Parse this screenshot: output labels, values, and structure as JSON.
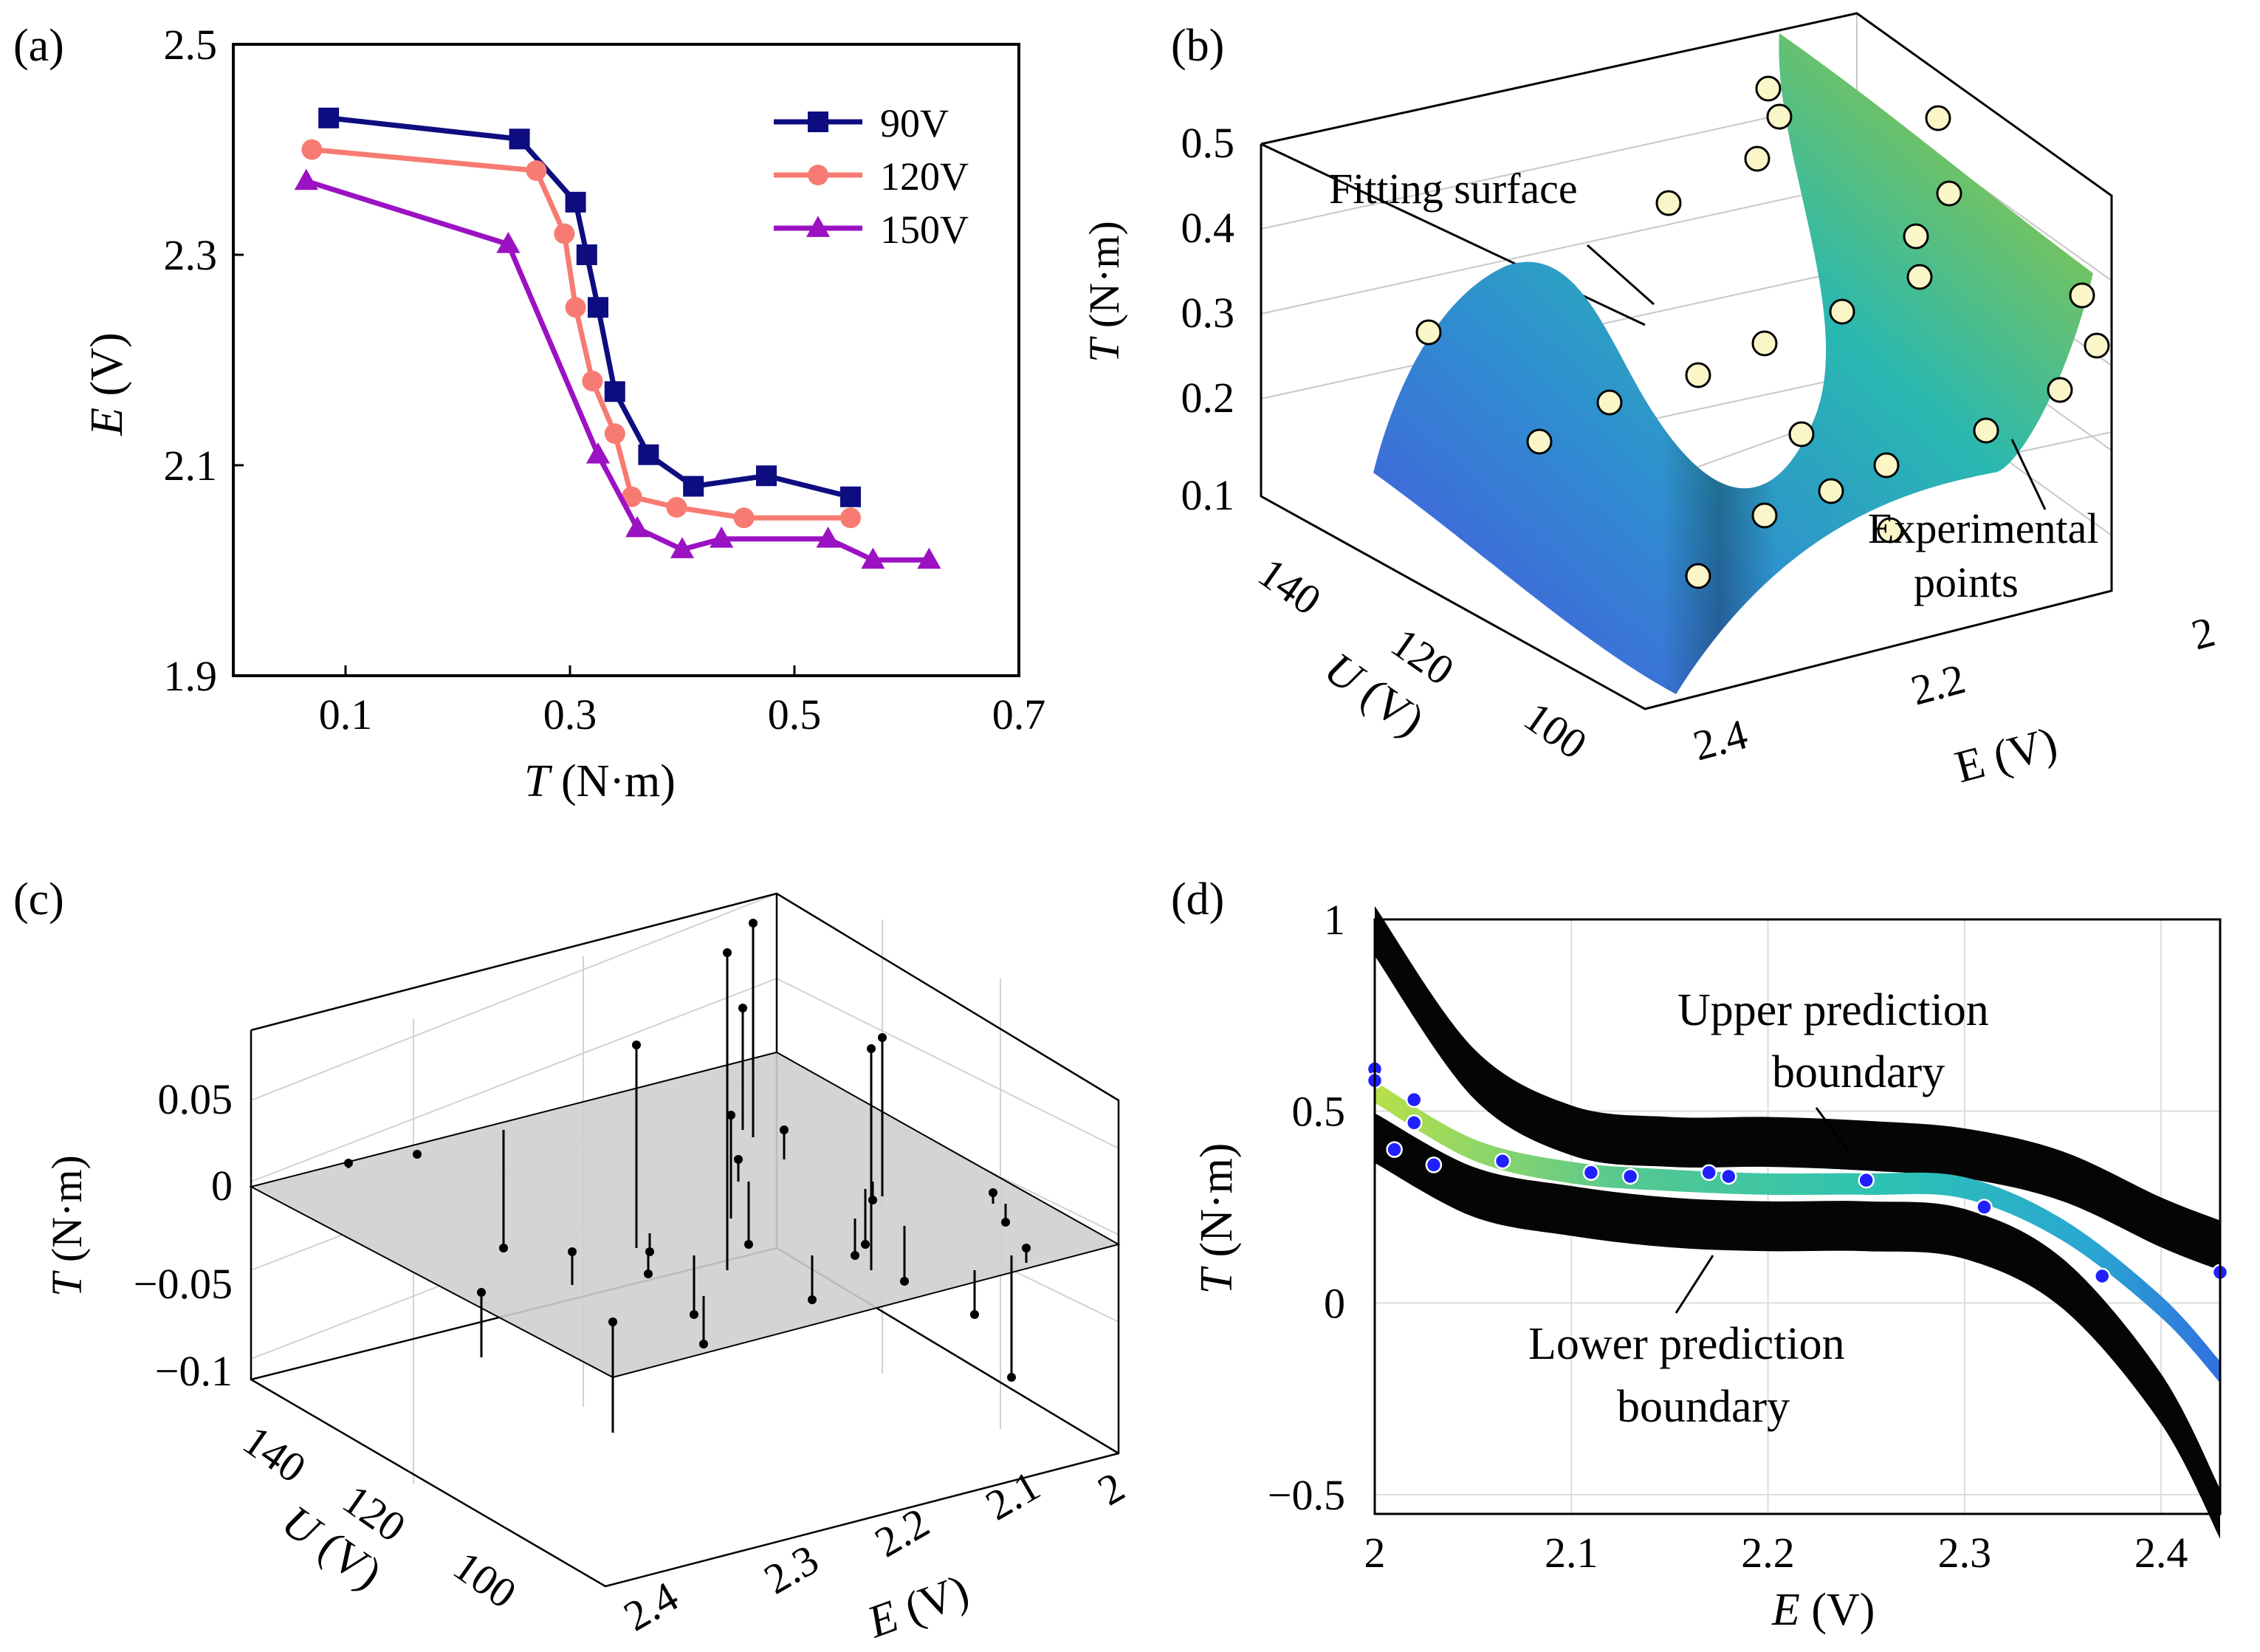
{
  "colors": {
    "s90": "#0d0d80",
    "s120": "#f77b72",
    "s150": "#9b12c3",
    "point_fill": "#fbf6c8",
    "residual_plane": "#cfcfcf",
    "band": "#050505",
    "blue_point": "#2020ff"
  },
  "panels": {
    "a": {
      "tag": "(a)"
    },
    "b": {
      "tag": "(b)",
      "annotations": [
        "Fitting surface",
        "Experimental",
        "points"
      ],
      "axis_titles": {
        "t_sym": "T",
        "t_unit": " (N·m)",
        "u_sym": "U",
        "u_unit": " (V)",
        "e_sym": "E",
        "e_unit": " (V)"
      },
      "t_ticks": [
        "0.5",
        "0.4",
        "0.3",
        "0.2",
        "0.1"
      ],
      "u_ticks": [
        "140",
        "120",
        "100"
      ],
      "e_ticks": [
        "2.4",
        "2.2",
        "2"
      ]
    },
    "c": {
      "tag": "(c)",
      "axis_titles": {
        "t_sym": "T",
        "t_unit": " (N·m)",
        "u_sym": "U",
        "u_unit": " (V)",
        "e_sym": "E",
        "e_unit": " (V)"
      },
      "t_ticks": [
        "0.05",
        "0",
        "−0.05",
        "−0.1"
      ],
      "u_ticks": [
        "140",
        "120",
        "100"
      ],
      "e_ticks": [
        "2.4",
        "2.3",
        "2.2",
        "2.1",
        "2"
      ]
    },
    "d": {
      "tag": "(d)",
      "annotations": [
        "Upper prediction",
        "boundary",
        "Lower prediction",
        "boundary"
      ]
    }
  },
  "chart_data": [
    {
      "panel": "a",
      "type": "line",
      "title": "",
      "xlabel_symbol": "T",
      "xlabel_unit": " (N·m)",
      "ylabel_symbol": "E",
      "ylabel_unit": " (V)",
      "xlim": [
        0,
        0.7
      ],
      "ylim": [
        1.9,
        2.5
      ],
      "xticks": [
        0.1,
        0.3,
        0.5,
        0.7
      ],
      "xtick_labels": [
        "0.1",
        "0.3",
        "0.5",
        "0.7"
      ],
      "yticks": [
        1.9,
        2.1,
        2.3,
        2.5
      ],
      "ytick_labels": [
        "1.9",
        "2.1",
        "2.3",
        "2.5"
      ],
      "legend_position": "top-right",
      "series": [
        {
          "name": "90V",
          "marker": "square",
          "color_key": "s90",
          "x": [
            0.085,
            0.255,
            0.305,
            0.315,
            0.325,
            0.34,
            0.37,
            0.41,
            0.475,
            0.55
          ],
          "y": [
            2.43,
            2.41,
            2.35,
            2.3,
            2.25,
            2.17,
            2.11,
            2.08,
            2.09,
            2.07
          ]
        },
        {
          "name": "120V",
          "marker": "circle",
          "color_key": "s120",
          "x": [
            0.07,
            0.27,
            0.295,
            0.305,
            0.32,
            0.34,
            0.355,
            0.395,
            0.455,
            0.55
          ],
          "y": [
            2.4,
            2.38,
            2.32,
            2.25,
            2.18,
            2.13,
            2.07,
            2.06,
            2.05,
            2.05
          ]
        },
        {
          "name": "150V",
          "marker": "triangle",
          "color_key": "s150",
          "x": [
            0.065,
            0.245,
            0.325,
            0.36,
            0.4,
            0.435,
            0.53,
            0.57,
            0.62
          ],
          "y": [
            2.37,
            2.31,
            2.11,
            2.04,
            2.02,
            2.03,
            2.03,
            2.01,
            2.01
          ]
        }
      ]
    },
    {
      "panel": "b",
      "type": "scatter",
      "title": "",
      "description_type": "3d fitted surface with experimental points",
      "xlabel": "E (V)",
      "ylabel": "U (V)",
      "zlabel": "T (N·m)",
      "xlim": [
        2.0,
        2.45
      ],
      "ylim": [
        90,
        150
      ],
      "zlim": [
        0.1,
        0.5
      ],
      "experimental_points_count": 24
    },
    {
      "panel": "c",
      "type": "scatter",
      "title": "",
      "description_type": "3d residual stem plot over zero plane",
      "xlabel": "E (V)",
      "ylabel": "U (V)",
      "zlabel": "T (N·m)",
      "xlim": [
        2.0,
        2.45
      ],
      "ylim": [
        90,
        150
      ],
      "zlim": [
        -0.1,
        0.08
      ],
      "residual_stems_count": 30
    },
    {
      "panel": "d",
      "type": "area",
      "title": "",
      "xlabel_symbol": "E",
      "xlabel_unit": " (V)",
      "ylabel_symbol": "T",
      "ylabel_unit": " (N·m)",
      "xlim": [
        2.0,
        2.43
      ],
      "ylim": [
        -0.55,
        1.0
      ],
      "xticks": [
        2.0,
        2.1,
        2.2,
        2.3,
        2.4
      ],
      "xtick_labels": [
        "2",
        "2.1",
        "2.2",
        "2.3",
        "2.4"
      ],
      "yticks": [
        1.0,
        0.5,
        0.0,
        -0.5
      ],
      "ytick_labels": [
        "1",
        "0.5",
        "0",
        "−0.5"
      ],
      "fit_curve": {
        "x": [
          2.0,
          2.05,
          2.1,
          2.15,
          2.2,
          2.25,
          2.3,
          2.35,
          2.4,
          2.43
        ],
        "y": [
          0.55,
          0.4,
          0.34,
          0.32,
          0.31,
          0.31,
          0.3,
          0.19,
          -0.01,
          -0.18
        ]
      },
      "upper_boundary": {
        "x": [
          2.0,
          2.05,
          2.1,
          2.15,
          2.2,
          2.25,
          2.3,
          2.35,
          2.4,
          2.43
        ],
        "y": [
          0.97,
          0.6,
          0.45,
          0.42,
          0.42,
          0.41,
          0.39,
          0.33,
          0.21,
          0.15
        ]
      },
      "lower_boundary": {
        "x": [
          2.0,
          2.05,
          2.1,
          2.15,
          2.2,
          2.25,
          2.3,
          2.35,
          2.4,
          2.43
        ],
        "y": [
          0.43,
          0.29,
          0.24,
          0.21,
          0.2,
          0.2,
          0.18,
          0.05,
          -0.25,
          -0.55
        ]
      },
      "points": {
        "x": [
          2.0,
          2.0,
          2.01,
          2.02,
          2.02,
          2.03,
          2.065,
          2.11,
          2.13,
          2.17,
          2.18,
          2.25,
          2.31,
          2.37,
          2.43
        ],
        "y": [
          0.61,
          0.58,
          0.4,
          0.47,
          0.53,
          0.36,
          0.37,
          0.34,
          0.33,
          0.34,
          0.33,
          0.32,
          0.25,
          0.07,
          0.08
        ]
      }
    }
  ]
}
